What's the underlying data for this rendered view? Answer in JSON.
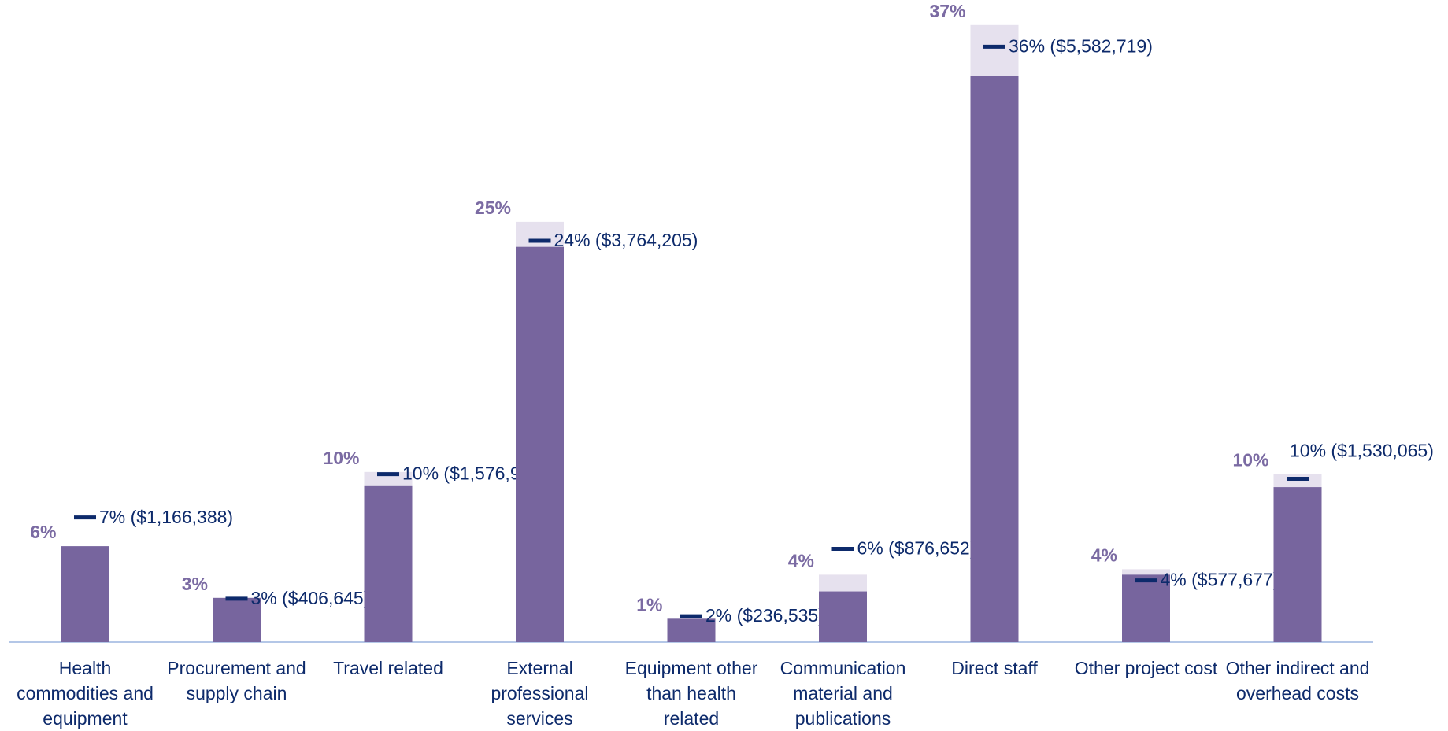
{
  "chart_data": {
    "type": "bar",
    "categories": [
      "Health commodities and equipment",
      "Procurement and supply chain",
      "Travel related",
      "External professional services",
      "Equipment other than health related",
      "Communication material and publications",
      "Direct staff",
      "Other project cost",
      "Other indirect and overhead costs"
    ],
    "series": [
      {
        "color": "#e6e1ee",
        "values": [
          5.75,
          2.65,
          10.2,
          25.2,
          1.4,
          4.04,
          37,
          4.37,
          10.07
        ],
        "value_labels": [
          "6%",
          "3%",
          "10%",
          "25%",
          "1%",
          "4%",
          "37%",
          "4%",
          "10%"
        ],
        "label_color": "#7b6ba3"
      },
      {
        "color": "#77659e",
        "values": [
          5.75,
          2.65,
          9.35,
          23.7,
          1.4,
          3.04,
          33.96,
          4.04,
          9.29
        ]
      },
      {
        "color": "#0d2a6b",
        "values": [
          7.47,
          2.6,
          10.07,
          24.06,
          1.55,
          5.59,
          35.7,
          3.7,
          9.79
        ],
        "value_labels": [
          "7% ($1,166,388)",
          "3% ($406,645)",
          "10% ($1,576,978)",
          "24% ($3,764,205)",
          "2% ($236,535)",
          "6% ($876,652)",
          "36% ($5,582,719)",
          "4% ($577,677)",
          "10% ($1,530,065)"
        ]
      }
    ],
    "ylim": [
      0,
      38.5
    ]
  }
}
